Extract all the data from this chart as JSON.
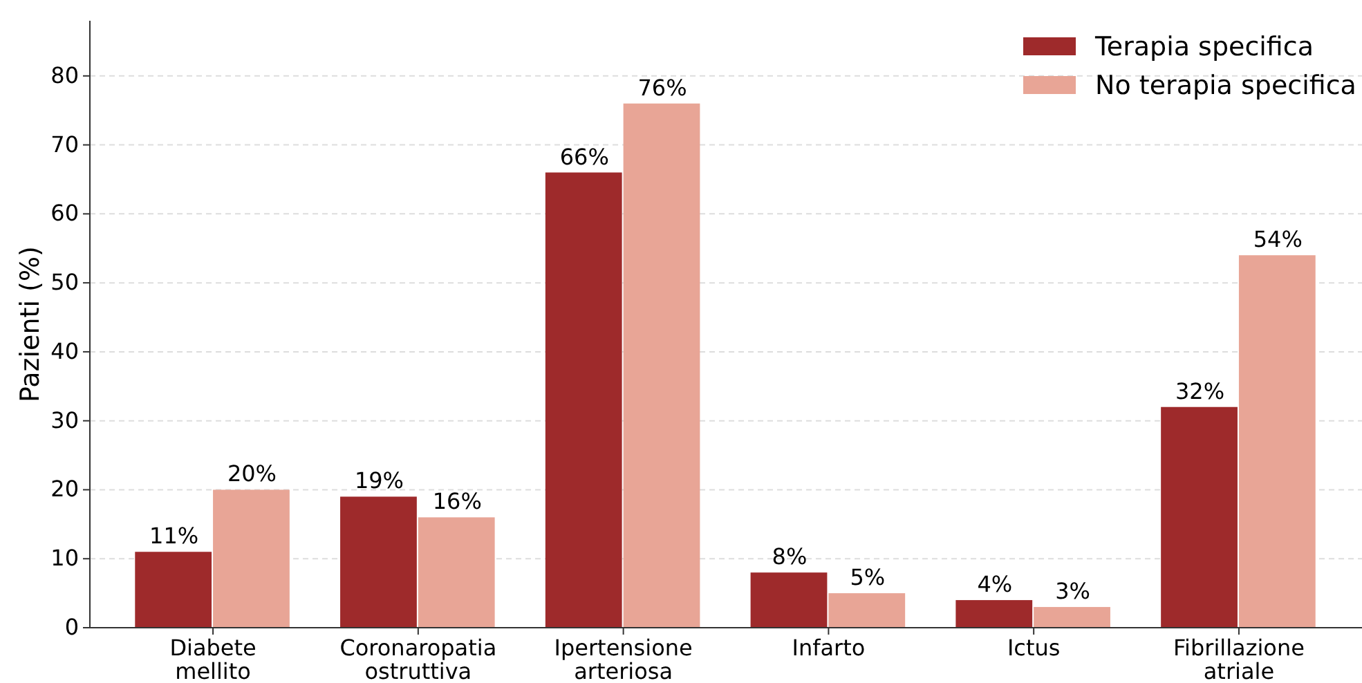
{
  "chart_data": {
    "type": "bar",
    "ylabel": "Pazienti (%)",
    "categories": [
      "Diabete mellito",
      "Coronaropatia ostruttiva",
      "Ipertensione arteriosa",
      "Infarto",
      "Ictus",
      "Fibrillazione atriale"
    ],
    "series": [
      {
        "name": "Terapia specifica",
        "color": "#9e2a2b",
        "values": [
          11,
          19,
          66,
          8,
          4,
          32
        ],
        "value_labels": [
          "11%",
          "19%",
          "66%",
          "8%",
          "4%",
          "32%"
        ]
      },
      {
        "name": "No terapia specifica",
        "color": "#e8a596",
        "values": [
          20,
          16,
          76,
          5,
          3,
          54
        ],
        "value_labels": [
          "20%",
          "16%",
          "76%",
          "5%",
          "3%",
          "54%"
        ]
      }
    ],
    "ylim": [
      0,
      88
    ],
    "yticks": [
      0,
      10,
      20,
      30,
      40,
      50,
      60,
      70,
      80
    ],
    "grid": "y",
    "legend": "top right"
  }
}
